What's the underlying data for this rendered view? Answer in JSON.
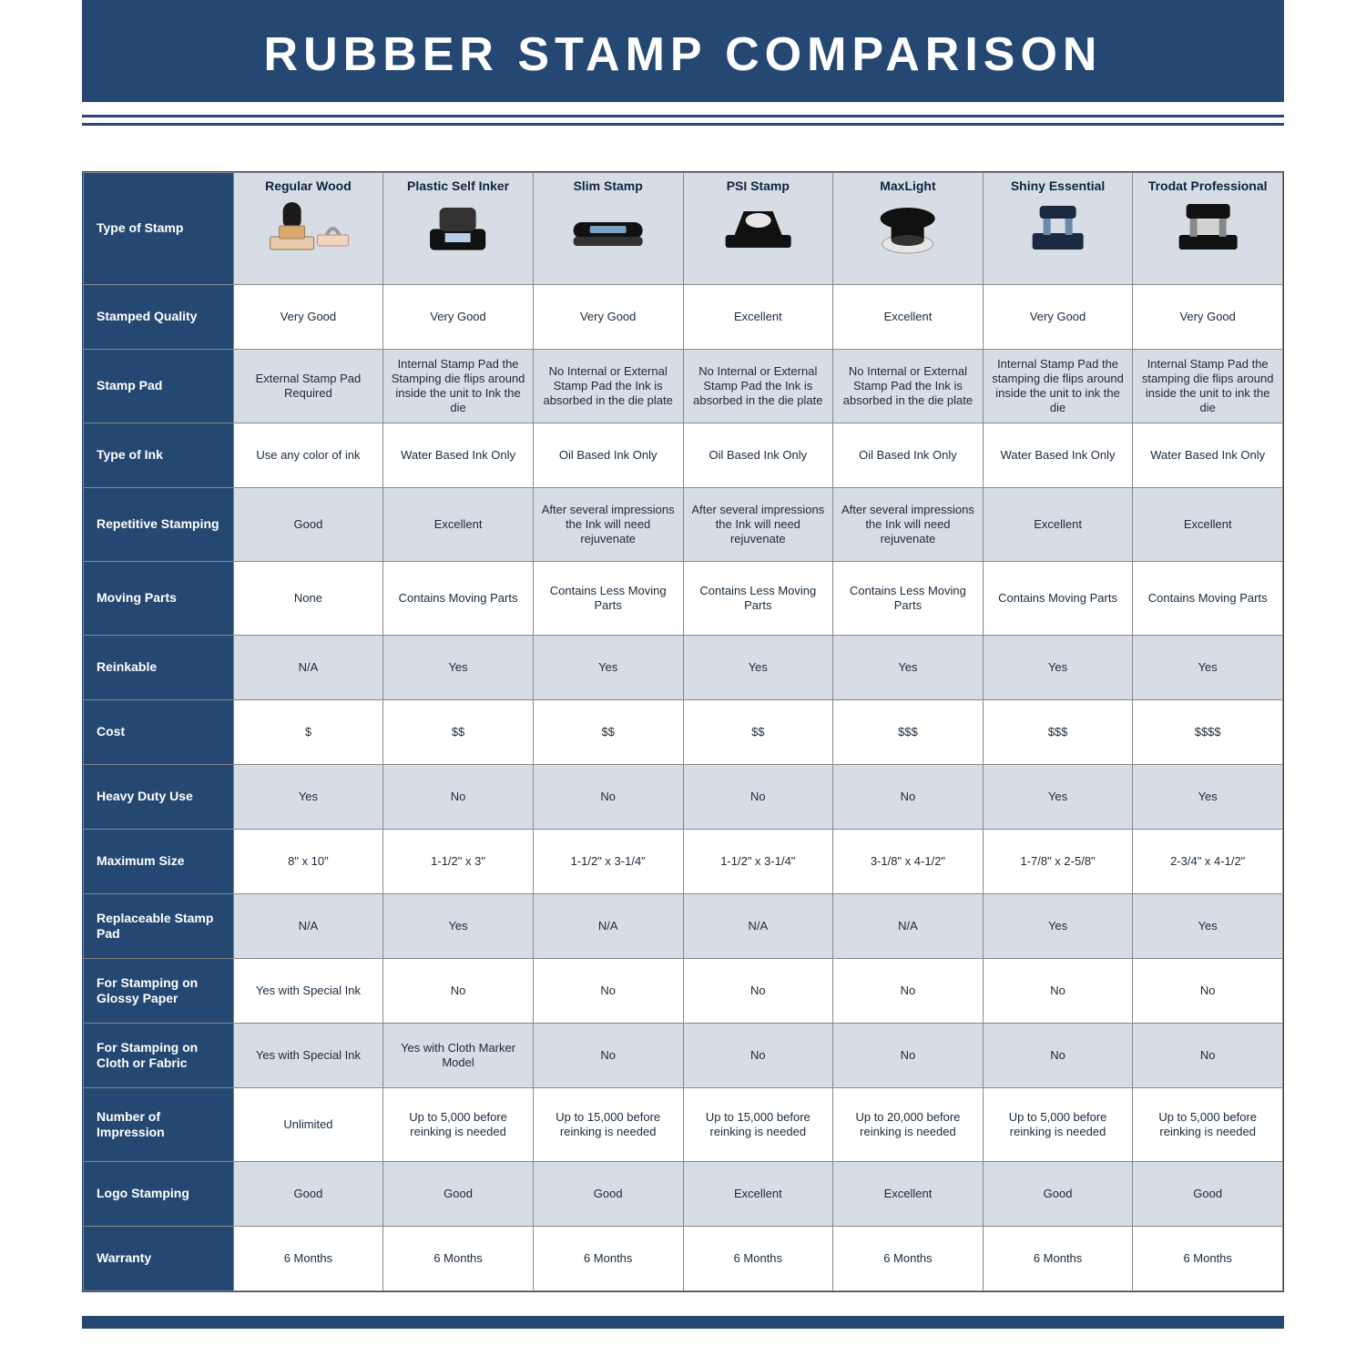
{
  "title": "RUBBER STAMP COMPARISON",
  "colors": {
    "header_bg": "#254872",
    "header_text": "#ffffff",
    "alt_row_bg": "#d7dde5",
    "row_bg": "#ffffff",
    "border": "#888888"
  },
  "columns": [
    "Regular Wood",
    "Plastic Self Inker",
    "Slim Stamp",
    "PSI Stamp",
    "MaxLight",
    "Shiny Essential",
    "Trodat Professional"
  ],
  "images": [
    "wood-stamp",
    "self-inker-stamp",
    "slim-stamp",
    "psi-stamp",
    "maxlight-stamp",
    "shiny-essential-stamp",
    "trodat-professional-stamp"
  ],
  "rows": [
    {
      "label": "Type of Stamp",
      "header_row": true
    },
    {
      "label": "Stamped Quality",
      "cells": [
        "Very Good",
        "Very Good",
        "Very Good",
        "Excellent",
        "Excellent",
        "Very Good",
        "Very Good"
      ]
    },
    {
      "label": "Stamp Pad",
      "cells": [
        "External Stamp Pad Required",
        "Internal Stamp Pad the Stamping die flips around inside the unit to Ink the die",
        "No Internal or External Stamp Pad the Ink is absorbed in the die plate",
        "No Internal or External Stamp Pad the Ink is absorbed in the die plate",
        "No Internal or External Stamp Pad the Ink is absorbed in the die plate",
        "Internal Stamp Pad the stamping die flips around inside the unit to ink the die",
        "Internal Stamp Pad the stamping die flips around inside the unit to ink the die"
      ],
      "tall": true
    },
    {
      "label": "Type of Ink",
      "cells": [
        "Use any color of ink",
        "Water Based Ink Only",
        "Oil Based Ink Only",
        "Oil Based Ink Only",
        "Oil Based Ink Only",
        "Water Based Ink Only",
        "Water Based Ink Only"
      ]
    },
    {
      "label": "Repetitive Stamping",
      "cells": [
        "Good",
        "Excellent",
        "After several impressions the Ink will need rejuvenate",
        "After several impressions the Ink will need rejuvenate",
        "After several impressions the Ink will need rejuvenate",
        "Excellent",
        "Excellent"
      ],
      "tall": true
    },
    {
      "label": "Moving Parts",
      "cells": [
        "None",
        "Contains Moving Parts",
        "Contains Less Moving Parts",
        "Contains Less Moving Parts",
        "Contains Less Moving Parts",
        "Contains Moving Parts",
        "Contains Moving Parts"
      ],
      "tall": true
    },
    {
      "label": "Reinkable",
      "cells": [
        "N/A",
        "Yes",
        "Yes",
        "Yes",
        "Yes",
        "Yes",
        "Yes"
      ]
    },
    {
      "label": "Cost",
      "cells": [
        "$",
        "$$",
        "$$",
        "$$",
        "$$$",
        "$$$",
        "$$$$"
      ]
    },
    {
      "label": "Heavy Duty Use",
      "cells": [
        "Yes",
        "No",
        "No",
        "No",
        "No",
        "Yes",
        "Yes"
      ]
    },
    {
      "label": "Maximum Size",
      "cells": [
        "8\" x 10\"",
        "1-1/2\" x 3\"",
        "1-1/2\" x 3-1/4\"",
        "1-1/2\" x 3-1/4\"",
        "3-1/8\" x 4-1/2\"",
        "1-7/8\" x 2-5/8\"",
        "2-3/4\" x 4-1/2\""
      ]
    },
    {
      "label": "Replaceable Stamp Pad",
      "cells": [
        "N/A",
        "Yes",
        "N/A",
        "N/A",
        "N/A",
        "Yes",
        "Yes"
      ]
    },
    {
      "label": "For Stamping on Glossy Paper",
      "cells": [
        "Yes with Special Ink",
        "No",
        "No",
        "No",
        "No",
        "No",
        "No"
      ]
    },
    {
      "label": "For Stamping on Cloth or Fabric",
      "cells": [
        "Yes with Special Ink",
        "Yes with Cloth Marker Model",
        "No",
        "No",
        "No",
        "No",
        "No"
      ]
    },
    {
      "label": "Number of Impression",
      "cells": [
        "Unlimited",
        "Up to 5,000 before reinking is needed",
        "Up to 15,000 before reinking is needed",
        "Up to 15,000 before reinking is needed",
        "Up to 20,000 before reinking is needed",
        "Up to 5,000 before reinking is needed",
        "Up to 5,000 before reinking is needed"
      ],
      "tall": true
    },
    {
      "label": "Logo Stamping",
      "cells": [
        "Good",
        "Good",
        "Good",
        "Excellent",
        "Excellent",
        "Good",
        "Good"
      ]
    },
    {
      "label": "Warranty",
      "cells": [
        "6 Months",
        "6 Months",
        "6 Months",
        "6 Months",
        "6 Months",
        "6 Months",
        "6 Months"
      ]
    }
  ]
}
